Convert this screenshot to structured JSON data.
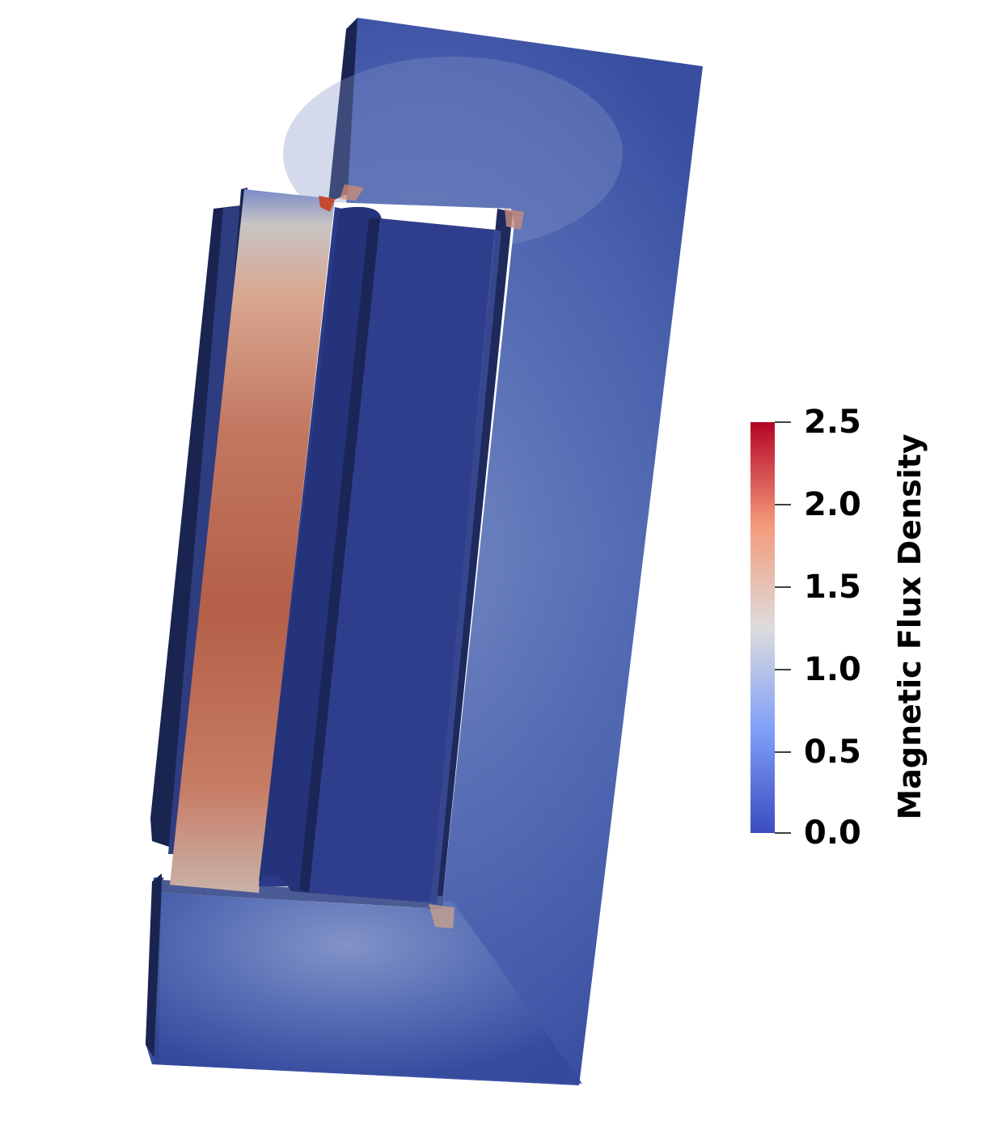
{
  "colorbar": {
    "title": "Magnetic Flux Density",
    "range": [
      0.0,
      2.5
    ],
    "ticks": [
      "2.5",
      "2.0",
      "1.5",
      "1.0",
      "0.5",
      "0.0"
    ],
    "colormap": [
      "#3b4cc0",
      "#7f9ff8",
      "#dddcdc",
      "#f49a7b",
      "#b40426"
    ]
  },
  "colors": {
    "field_low": "#3f55a8",
    "field_mid": "#5a75b8",
    "hot_column": "#b9654f",
    "dark_edge": "#1a2450",
    "inner_block": "#2f3e8c"
  }
}
